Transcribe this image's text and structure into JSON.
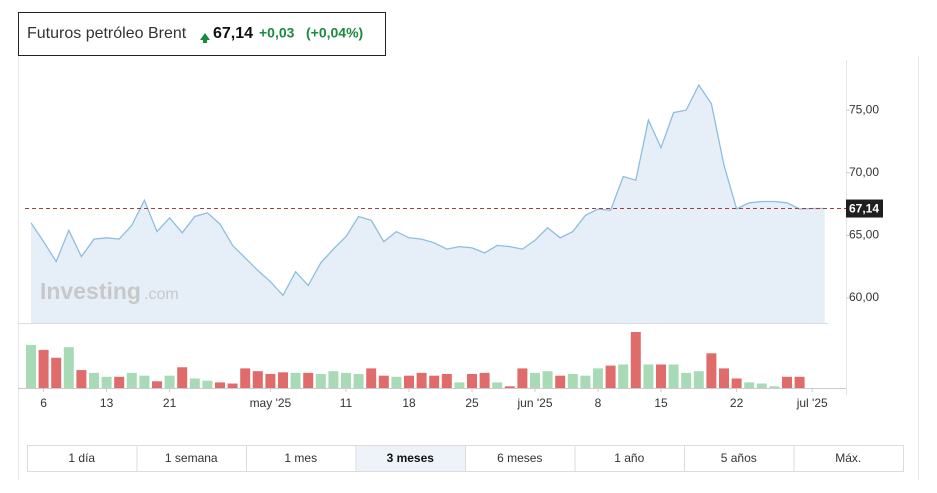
{
  "chart_data": {
    "type": "line",
    "title": "Futuros petróleo Brent",
    "last_label": "67,14",
    "change_label": "+0,03",
    "change_pct_label": "(+0,04%)",
    "watermark": [
      "Investing",
      ".com"
    ],
    "categories": [
      null,
      "6",
      null,
      null,
      null,
      null,
      "13",
      null,
      null,
      null,
      null,
      "21",
      null,
      null,
      null,
      null,
      null,
      null,
      null,
      "may '25",
      null,
      null,
      null,
      null,
      null,
      "11",
      null,
      null,
      null,
      null,
      "18",
      null,
      null,
      null,
      null,
      "25",
      null,
      null,
      null,
      null,
      "jun '25",
      null,
      null,
      null,
      null,
      "8",
      null,
      null,
      null,
      null,
      "15",
      null,
      null,
      null,
      null,
      null,
      "22",
      null,
      null,
      null,
      null,
      null,
      "jul '25",
      null
    ],
    "series": [
      {
        "color": "#8dbde0",
        "values": [
          66.0,
          64.5,
          62.9,
          65.4,
          63.3,
          64.7,
          64.8,
          64.7,
          65.8,
          67.8,
          65.3,
          66.4,
          65.2,
          66.5,
          66.8,
          65.9,
          64.2,
          63.2,
          62.2,
          61.3,
          60.2,
          62.1,
          61.0,
          62.8,
          63.9,
          64.9,
          66.5,
          66.2,
          64.5,
          65.3,
          64.8,
          64.7,
          64.4,
          63.9,
          64.1,
          64.0,
          63.6,
          64.2,
          64.1,
          63.9,
          64.6,
          65.6,
          64.8,
          65.3,
          66.6,
          67.1,
          67.0,
          69.7,
          69.4,
          74.2,
          72.0,
          74.8,
          75.0,
          77.0,
          75.5,
          70.6,
          67.1,
          67.6,
          67.7,
          67.7,
          67.6,
          67.1,
          67.14,
          67.14
        ]
      }
    ],
    "volume": {
      "up_color": "#a8dbb5",
      "down_color": "#e06b6b",
      "ylim": [
        0,
        100
      ],
      "values": [
        77,
        68,
        54,
        73,
        32,
        27,
        20,
        20,
        27,
        22,
        12,
        22,
        37,
        17,
        13,
        10,
        8,
        35,
        30,
        25,
        28,
        27,
        27,
        25,
        30,
        27,
        25,
        35,
        22,
        20,
        22,
        27,
        22,
        25,
        10,
        25,
        27,
        10,
        3,
        35,
        27,
        30,
        22,
        25,
        22,
        35,
        40,
        42,
        100,
        42,
        42,
        42,
        27,
        30,
        62,
        35,
        17,
        10,
        8,
        3,
        20,
        20,
        0,
        0
      ]
    },
    "ylim": [
      58,
      79
    ],
    "yticks": [
      {
        "value": 60,
        "label": "60,00"
      },
      {
        "value": 65,
        "label": "65,00"
      },
      {
        "value": 70,
        "label": "70,00"
      },
      {
        "value": 75,
        "label": "75,00"
      }
    ],
    "last_value": {
      "value": 67.14,
      "label": "67,14"
    },
    "ranges": {
      "options": [
        "1 día",
        "1 semana",
        "1 mes",
        "3 meses",
        "6 meses",
        "1 año",
        "5 años",
        "Máx."
      ],
      "selected": 3
    }
  }
}
